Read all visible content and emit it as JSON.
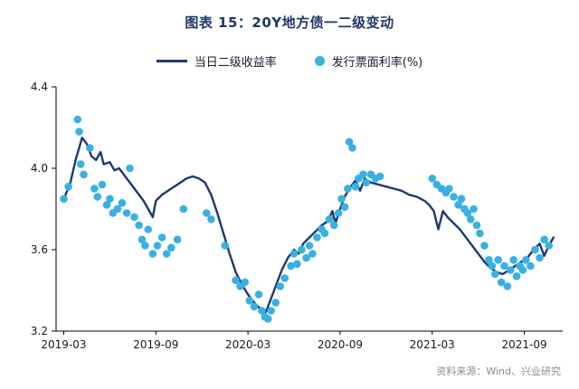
{
  "title": "图表 15：20Y地方债一二级变动",
  "legend": {
    "line_label": "当日二级收益率",
    "scatter_label": "发行票面利率(%)"
  },
  "source": "资料来源：Wind、兴业研究",
  "colors": {
    "line": "#1d3a6e",
    "dot": "#38b0e4",
    "title": "#1f3864",
    "axis": "#000000",
    "tick_text": "#1a1a1a",
    "source_text": "#8c8c8c"
  },
  "chart_data": {
    "type": "line",
    "x_unit": "months since 2019-03",
    "xlim": [
      -0.5,
      32.5
    ],
    "ylim": [
      3.2,
      4.4
    ],
    "yticks": [
      3.2,
      3.6,
      4.0,
      4.4
    ],
    "ytick_labels": [
      "3.2",
      "3.6",
      "4.0",
      "4.4"
    ],
    "xticks": {
      "positions": [
        0,
        6,
        12,
        18,
        24,
        30
      ],
      "labels": [
        "2019-03",
        "2019-09",
        "2020-03",
        "2020-09",
        "2021-03",
        "2021-09"
      ]
    },
    "grid": false,
    "legend_position": "top-center",
    "series": [
      {
        "name": "当日二级收益率",
        "kind": "line",
        "points": [
          [
            0,
            3.85
          ],
          [
            0.4,
            3.92
          ],
          [
            0.8,
            4.05
          ],
          [
            1.2,
            4.15
          ],
          [
            1.5,
            4.12
          ],
          [
            1.8,
            4.06
          ],
          [
            2.1,
            4.04
          ],
          [
            2.4,
            4.08
          ],
          [
            2.6,
            4.02
          ],
          [
            3.0,
            4.03
          ],
          [
            3.3,
            3.99
          ],
          [
            3.6,
            4.0
          ],
          [
            4.0,
            3.96
          ],
          [
            4.4,
            3.92
          ],
          [
            4.8,
            3.88
          ],
          [
            5.2,
            3.84
          ],
          [
            5.5,
            3.8
          ],
          [
            5.8,
            3.76
          ],
          [
            6.0,
            3.84
          ],
          [
            6.4,
            3.87
          ],
          [
            6.8,
            3.89
          ],
          [
            7.2,
            3.91
          ],
          [
            7.6,
            3.93
          ],
          [
            8.0,
            3.95
          ],
          [
            8.4,
            3.96
          ],
          [
            8.8,
            3.95
          ],
          [
            9.2,
            3.93
          ],
          [
            9.6,
            3.87
          ],
          [
            10.0,
            3.78
          ],
          [
            10.4,
            3.68
          ],
          [
            10.8,
            3.58
          ],
          [
            11.2,
            3.49
          ],
          [
            11.6,
            3.43
          ],
          [
            12.0,
            3.38
          ],
          [
            12.4,
            3.34
          ],
          [
            12.8,
            3.31
          ],
          [
            13.0,
            3.28
          ],
          [
            13.2,
            3.3
          ],
          [
            13.5,
            3.36
          ],
          [
            13.8,
            3.42
          ],
          [
            14.2,
            3.5
          ],
          [
            14.6,
            3.56
          ],
          [
            15.0,
            3.6
          ],
          [
            15.3,
            3.58
          ],
          [
            15.6,
            3.63
          ],
          [
            16.0,
            3.66
          ],
          [
            16.4,
            3.69
          ],
          [
            16.8,
            3.72
          ],
          [
            17.2,
            3.74
          ],
          [
            17.5,
            3.79
          ],
          [
            17.7,
            3.73
          ],
          [
            18.0,
            3.8
          ],
          [
            18.3,
            3.86
          ],
          [
            18.6,
            3.9
          ],
          [
            19.0,
            3.94
          ],
          [
            19.3,
            3.89
          ],
          [
            19.6,
            3.95
          ],
          [
            20.0,
            3.93
          ],
          [
            20.5,
            3.92
          ],
          [
            21.0,
            3.91
          ],
          [
            21.5,
            3.9
          ],
          [
            22.0,
            3.89
          ],
          [
            22.5,
            3.87
          ],
          [
            23.0,
            3.86
          ],
          [
            23.5,
            3.84
          ],
          [
            23.8,
            3.82
          ],
          [
            24.1,
            3.79
          ],
          [
            24.4,
            3.7
          ],
          [
            24.7,
            3.79
          ],
          [
            25.0,
            3.76
          ],
          [
            25.4,
            3.73
          ],
          [
            25.8,
            3.7
          ],
          [
            26.2,
            3.66
          ],
          [
            26.6,
            3.62
          ],
          [
            27.0,
            3.58
          ],
          [
            27.4,
            3.54
          ],
          [
            27.8,
            3.51
          ],
          [
            28.2,
            3.49
          ],
          [
            28.6,
            3.48
          ],
          [
            29.0,
            3.5
          ],
          [
            29.4,
            3.52
          ],
          [
            29.8,
            3.54
          ],
          [
            30.2,
            3.56
          ],
          [
            30.6,
            3.6
          ],
          [
            31.0,
            3.63
          ],
          [
            31.3,
            3.57
          ],
          [
            31.6,
            3.62
          ],
          [
            31.9,
            3.66
          ]
        ]
      },
      {
        "name": "发行票面利率(%)",
        "kind": "scatter",
        "points": [
          [
            0.0,
            3.85
          ],
          [
            0.3,
            3.91
          ],
          [
            0.9,
            4.24
          ],
          [
            1.0,
            4.18
          ],
          [
            1.1,
            4.02
          ],
          [
            1.3,
            3.97
          ],
          [
            1.7,
            4.1
          ],
          [
            2.0,
            3.9
          ],
          [
            2.2,
            3.86
          ],
          [
            2.5,
            3.92
          ],
          [
            2.8,
            3.82
          ],
          [
            3.0,
            3.85
          ],
          [
            3.2,
            3.78
          ],
          [
            3.5,
            3.8
          ],
          [
            3.8,
            3.83
          ],
          [
            4.1,
            3.78
          ],
          [
            4.3,
            4.0
          ],
          [
            4.6,
            3.76
          ],
          [
            4.9,
            3.72
          ],
          [
            5.1,
            3.65
          ],
          [
            5.3,
            3.62
          ],
          [
            5.5,
            3.7
          ],
          [
            5.8,
            3.58
          ],
          [
            6.1,
            3.62
          ],
          [
            6.4,
            3.66
          ],
          [
            6.7,
            3.58
          ],
          [
            7.0,
            3.61
          ],
          [
            7.4,
            3.65
          ],
          [
            7.8,
            3.8
          ],
          [
            9.3,
            3.78
          ],
          [
            9.6,
            3.75
          ],
          [
            10.5,
            3.62
          ],
          [
            11.2,
            3.45
          ],
          [
            11.5,
            3.42
          ],
          [
            11.8,
            3.44
          ],
          [
            12.1,
            3.35
          ],
          [
            12.4,
            3.32
          ],
          [
            12.7,
            3.38
          ],
          [
            12.9,
            3.3
          ],
          [
            13.1,
            3.27
          ],
          [
            13.3,
            3.26
          ],
          [
            13.5,
            3.3
          ],
          [
            13.8,
            3.34
          ],
          [
            14.1,
            3.42
          ],
          [
            14.4,
            3.46
          ],
          [
            14.8,
            3.52
          ],
          [
            15.0,
            3.58
          ],
          [
            15.2,
            3.53
          ],
          [
            15.5,
            3.6
          ],
          [
            15.8,
            3.56
          ],
          [
            16.0,
            3.62
          ],
          [
            16.2,
            3.58
          ],
          [
            16.5,
            3.66
          ],
          [
            16.8,
            3.7
          ],
          [
            17.0,
            3.68
          ],
          [
            17.3,
            3.75
          ],
          [
            17.6,
            3.72
          ],
          [
            17.9,
            3.78
          ],
          [
            18.1,
            3.85
          ],
          [
            18.3,
            3.81
          ],
          [
            18.5,
            3.9
          ],
          [
            18.6,
            4.13
          ],
          [
            18.8,
            4.1
          ],
          [
            19.0,
            3.91
          ],
          [
            19.2,
            3.95
          ],
          [
            19.5,
            3.97
          ],
          [
            19.7,
            3.93
          ],
          [
            20.0,
            3.97
          ],
          [
            20.3,
            3.95
          ],
          [
            20.6,
            3.96
          ],
          [
            24.0,
            3.95
          ],
          [
            24.3,
            3.92
          ],
          [
            24.6,
            3.9
          ],
          [
            24.9,
            3.88
          ],
          [
            25.1,
            3.9
          ],
          [
            25.4,
            3.86
          ],
          [
            25.7,
            3.82
          ],
          [
            25.9,
            3.85
          ],
          [
            26.1,
            3.8
          ],
          [
            26.3,
            3.78
          ],
          [
            26.5,
            3.75
          ],
          [
            26.7,
            3.8
          ],
          [
            26.9,
            3.72
          ],
          [
            27.1,
            3.68
          ],
          [
            27.4,
            3.62
          ],
          [
            27.7,
            3.55
          ],
          [
            27.9,
            3.52
          ],
          [
            28.1,
            3.48
          ],
          [
            28.3,
            3.55
          ],
          [
            28.5,
            3.44
          ],
          [
            28.7,
            3.52
          ],
          [
            28.9,
            3.42
          ],
          [
            29.1,
            3.5
          ],
          [
            29.3,
            3.55
          ],
          [
            29.5,
            3.47
          ],
          [
            29.7,
            3.52
          ],
          [
            29.9,
            3.5
          ],
          [
            30.1,
            3.55
          ],
          [
            30.4,
            3.52
          ],
          [
            30.7,
            3.6
          ],
          [
            31.0,
            3.56
          ],
          [
            31.3,
            3.65
          ],
          [
            31.6,
            3.62
          ]
        ]
      }
    ]
  }
}
